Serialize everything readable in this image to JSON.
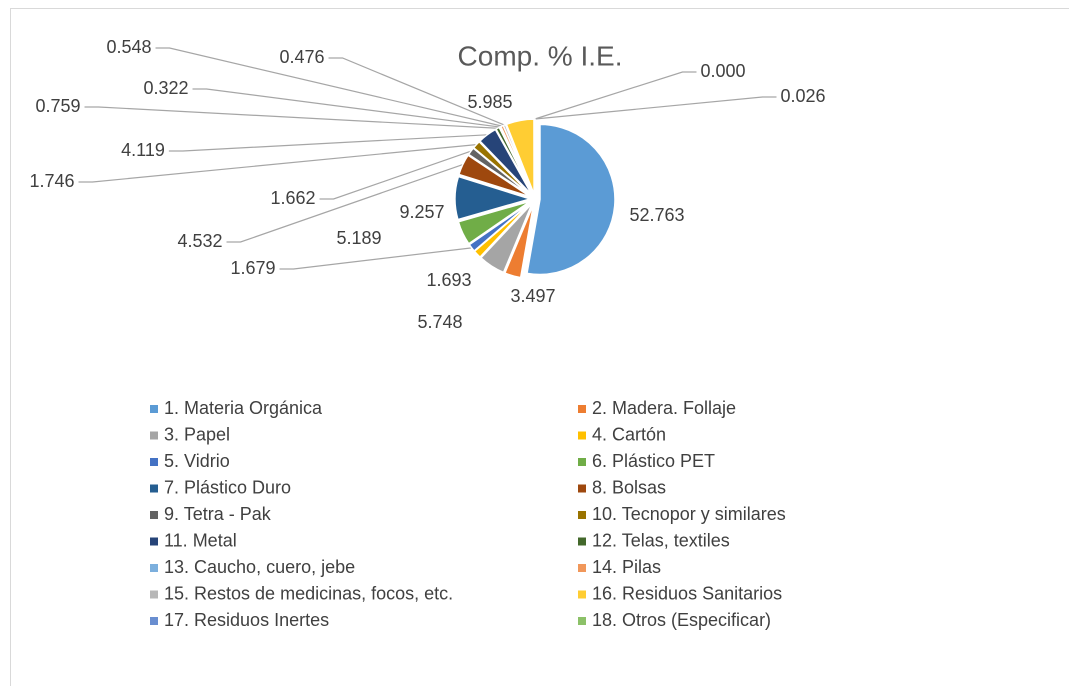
{
  "chart_data": {
    "type": "pie",
    "title": "Comp. % I.E.",
    "categories": [
      "1. Materia Orgánica",
      "2. Madera. Follaje",
      "3. Papel",
      "4. Cartón",
      "5. Vidrio",
      "6. Plástico PET",
      "7. Plástico Duro",
      "8. Bolsas",
      "9. Tetra - Pak",
      "10. Tecnopor y similares",
      "11. Metal",
      "12. Telas, textiles",
      "13. Caucho, cuero, jebe",
      "14. Pilas",
      "15. Restos de medicinas, focos, etc.",
      "16. Residuos Sanitarios",
      "17. Residuos Inertes",
      "18. Otros (Especificar)"
    ],
    "values": [
      52.763,
      3.497,
      5.748,
      1.693,
      1.679,
      5.189,
      9.257,
      4.532,
      1.662,
      1.746,
      4.119,
      0.759,
      0.322,
      0.548,
      0.476,
      5.985,
      0.0,
      0.026
    ],
    "value_labels": [
      "52.763",
      "3.497",
      "5.748",
      "1.693",
      "1.679",
      "5.189",
      "9.257",
      "4.532",
      "1.662",
      "1.746",
      "4.119",
      "0.759",
      "0.322",
      "0.548",
      "0.476",
      "5.985",
      "0.000",
      "0.026"
    ],
    "colors": [
      "#5b9bd5",
      "#ed7d31",
      "#a5a5a5",
      "#ffc000",
      "#4472c4",
      "#70ad47",
      "#255e91",
      "#9e480e",
      "#636363",
      "#997300",
      "#264478",
      "#43682b",
      "#7cafdd",
      "#f1975a",
      "#b7b7b7",
      "#ffcd33",
      "#698ed0",
      "#8cc168"
    ],
    "legend": "bottom"
  }
}
